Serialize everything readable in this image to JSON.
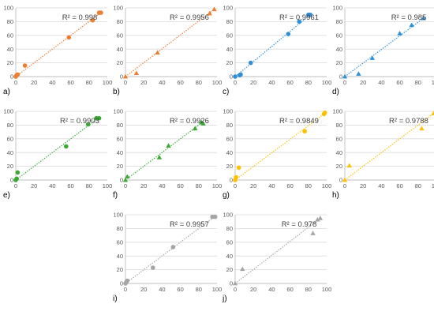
{
  "chart_data": [
    {
      "type": "scatter",
      "panel_label": "a)",
      "r2_text": "R² = 0.998",
      "color": "#ED7D31",
      "marker": "circle",
      "xlim": [
        0,
        100
      ],
      "ylim": [
        0,
        100
      ],
      "x_ticks": [
        0,
        20,
        40,
        60,
        80,
        100
      ],
      "y_ticks": [
        0,
        20,
        40,
        60,
        80,
        100
      ],
      "x": [
        0,
        1,
        2,
        10,
        58,
        84,
        91,
        93
      ],
      "y": [
        0,
        2,
        3,
        16,
        57,
        82,
        93,
        93
      ],
      "trendline": [
        [
          0,
          0
        ],
        [
          95,
          95
        ]
      ]
    },
    {
      "type": "scatter",
      "panel_label": "b)",
      "r2_text": "R² = 0.9956",
      "color": "#ED7D31",
      "marker": "triangle",
      "xlim": [
        0,
        100
      ],
      "ylim": [
        0,
        100
      ],
      "x_ticks": [
        0,
        20,
        40,
        60,
        80,
        100
      ],
      "y_ticks": [
        0,
        20,
        40,
        60,
        80,
        100
      ],
      "x": [
        0,
        12,
        35,
        92,
        97
      ],
      "y": [
        0,
        5,
        35,
        92,
        98
      ],
      "trendline": [
        [
          0,
          0
        ],
        [
          97,
          98
        ]
      ]
    },
    {
      "type": "scatter",
      "panel_label": "c)",
      "r2_text": "R² = 0.9961",
      "color": "#2E8FD8",
      "marker": "circle",
      "xlim": [
        0,
        100
      ],
      "ylim": [
        0,
        100
      ],
      "x_ticks": [
        0,
        20,
        40,
        60,
        80,
        100
      ],
      "y_ticks": [
        0,
        20,
        40,
        60,
        80,
        100
      ],
      "x": [
        0,
        5,
        6,
        17,
        58,
        70,
        80,
        82
      ],
      "y": [
        0,
        2,
        3,
        20,
        62,
        80,
        90,
        90
      ],
      "trendline": [
        [
          0,
          0
        ],
        [
          82,
          90
        ]
      ]
    },
    {
      "type": "scatter",
      "panel_label": "d)",
      "r2_text": "R² = 0.985",
      "color": "#2E8FD8",
      "marker": "triangle",
      "xlim": [
        0,
        100
      ],
      "ylim": [
        0,
        100
      ],
      "x_ticks": [
        0,
        20,
        40,
        60,
        80,
        100
      ],
      "y_ticks": [
        0,
        20,
        40,
        60,
        80,
        100
      ],
      "x": [
        0,
        15,
        30,
        60,
        73,
        86
      ],
      "y": [
        0,
        4,
        27,
        63,
        75,
        85
      ],
      "trendline": [
        [
          0,
          0
        ],
        [
          87,
          86
        ]
      ]
    },
    {
      "type": "scatter",
      "panel_label": "e)",
      "r2_text": "R² = 0.9903",
      "color": "#3AAA35",
      "marker": "circle",
      "xlim": [
        0,
        100
      ],
      "ylim": [
        0,
        100
      ],
      "x_ticks": [
        0,
        20,
        40,
        60,
        80,
        100
      ],
      "y_ticks": [
        0,
        20,
        40,
        60,
        80,
        100
      ],
      "x": [
        0,
        1,
        2,
        55,
        79,
        88,
        91
      ],
      "y": [
        0,
        2,
        11,
        49,
        81,
        90,
        90
      ],
      "trendline": [
        [
          0,
          0
        ],
        [
          91,
          91
        ]
      ]
    },
    {
      "type": "scatter",
      "panel_label": "f)",
      "r2_text": "R² = 0.9926",
      "color": "#3AAA35",
      "marker": "triangle",
      "xlim": [
        0,
        100
      ],
      "ylim": [
        0,
        100
      ],
      "x_ticks": [
        0,
        20,
        40,
        60,
        80,
        100
      ],
      "y_ticks": [
        0,
        20,
        40,
        60,
        80,
        100
      ],
      "x": [
        0,
        2,
        37,
        47,
        76,
        83,
        85
      ],
      "y": [
        0,
        5,
        33,
        50,
        75,
        84,
        82
      ],
      "trendline": [
        [
          0,
          0
        ],
        [
          85,
          85
        ]
      ]
    },
    {
      "type": "scatter",
      "panel_label": "g)",
      "r2_text": "R² = 0.9849",
      "color": "#FFC000",
      "marker": "circle",
      "xlim": [
        0,
        100
      ],
      "ylim": [
        0,
        100
      ],
      "x_ticks": [
        0,
        20,
        40,
        60,
        80,
        100
      ],
      "y_ticks": [
        0,
        20,
        40,
        60,
        80,
        100
      ],
      "x": [
        0,
        1,
        4,
        76,
        97,
        98
      ],
      "y": [
        0,
        4,
        18,
        71,
        96,
        98
      ],
      "trendline": [
        [
          0,
          0
        ],
        [
          98,
          97
        ]
      ]
    },
    {
      "type": "scatter",
      "panel_label": "h)",
      "r2_text": "R² = 0.9788",
      "color": "#FFC000",
      "marker": "triangle",
      "xlim": [
        0,
        100
      ],
      "ylim": [
        0,
        100
      ],
      "x_ticks": [
        0,
        20,
        40,
        60,
        80,
        100
      ],
      "y_ticks": [
        0,
        20,
        40,
        60,
        80,
        100
      ],
      "x": [
        0,
        5,
        84,
        97
      ],
      "y": [
        0,
        21,
        75,
        97
      ],
      "trendline": [
        [
          0,
          0
        ],
        [
          97,
          97
        ]
      ]
    },
    {
      "type": "scatter",
      "panel_label": "i)",
      "r2_text": "R² = 0.9957",
      "color": "#A5A5A5",
      "marker": "circle",
      "xlim": [
        0,
        100
      ],
      "ylim": [
        0,
        100
      ],
      "x_ticks": [
        0,
        20,
        40,
        60,
        80,
        100
      ],
      "y_ticks": [
        0,
        20,
        40,
        60,
        80,
        100
      ],
      "x": [
        0,
        1,
        2,
        30,
        52,
        95,
        98
      ],
      "y": [
        0,
        2,
        4,
        23,
        53,
        97,
        97
      ],
      "trendline": [
        [
          0,
          0
        ],
        [
          98,
          98
        ]
      ]
    },
    {
      "type": "scatter",
      "panel_label": "j)",
      "r2_text": "R² = 0.978",
      "color": "#A5A5A5",
      "marker": "triangle",
      "xlim": [
        0,
        100
      ],
      "ylim": [
        0,
        100
      ],
      "x_ticks": [
        0,
        20,
        40,
        60,
        80,
        100
      ],
      "y_ticks": [
        0,
        20,
        40,
        60,
        80,
        100
      ],
      "x": [
        0,
        8,
        85,
        90,
        93
      ],
      "y": [
        0,
        21,
        73,
        93,
        95
      ],
      "trendline": [
        [
          0,
          0
        ],
        [
          93,
          95
        ]
      ]
    }
  ]
}
